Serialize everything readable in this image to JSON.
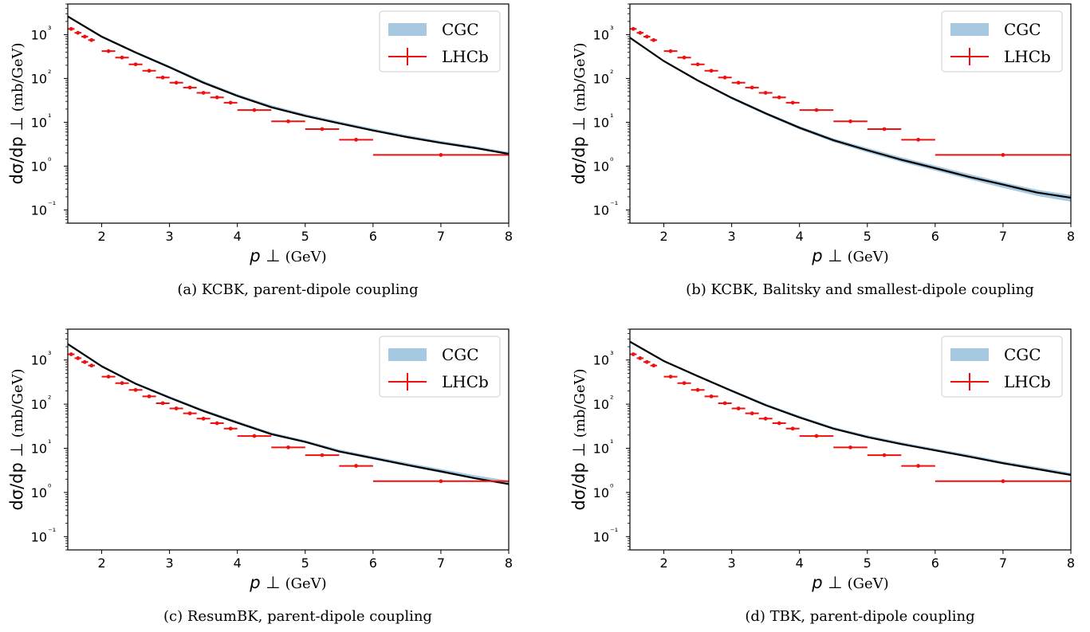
{
  "chart_data": [
    {
      "type": "line",
      "panel": "a",
      "caption": "(a) KCBK, parent-dipole coupling",
      "xlabel": "p_⊥ (GeV)",
      "ylabel": "dσ/dp_⊥ (mb/GeV)",
      "xlim": [
        1.5,
        8
      ],
      "ylim": [
        0.05,
        5000
      ],
      "yscale": "log",
      "x_ticks": [
        "2",
        "3",
        "4",
        "5",
        "6",
        "7",
        "8"
      ],
      "y_ticks": [
        "10⁻¹",
        "10⁰",
        "10¹",
        "10²",
        "10³"
      ],
      "legend": {
        "position": "top-right",
        "entries": [
          "CGC",
          "LHCb"
        ]
      },
      "series": [
        {
          "name": "CGC",
          "kind": "band+line",
          "x": [
            1.5,
            2.0,
            2.5,
            3.0,
            3.5,
            4.0,
            4.5,
            5.0,
            5.5,
            6.0,
            6.5,
            7.0,
            7.5,
            8.0
          ],
          "y": [
            2600,
            900,
            390,
            180,
            80,
            40,
            22,
            14,
            9.5,
            6.5,
            4.6,
            3.4,
            2.6,
            1.9
          ],
          "y_low": [
            2500,
            850,
            370,
            170,
            76,
            38,
            21,
            13.5,
            9.0,
            6.2,
            4.4,
            3.2,
            2.45,
            1.8
          ],
          "y_high": [
            2750,
            960,
            420,
            195,
            88,
            44,
            24.5,
            15.5,
            10.5,
            7.2,
            5.1,
            3.75,
            2.85,
            2.1
          ]
        },
        {
          "name": "LHCb",
          "kind": "errorbar",
          "x": [
            1.55,
            1.65,
            1.75,
            1.85,
            2.1,
            2.3,
            2.5,
            2.7,
            2.9,
            3.1,
            3.3,
            3.5,
            3.7,
            3.9,
            4.25,
            4.75,
            5.25,
            5.75,
            7.0
          ],
          "xerr": [
            0.05,
            0.05,
            0.05,
            0.05,
            0.1,
            0.1,
            0.1,
            0.1,
            0.1,
            0.1,
            0.1,
            0.1,
            0.1,
            0.1,
            0.25,
            0.25,
            0.25,
            0.25,
            1.0
          ],
          "y": [
            1350,
            1100,
            900,
            750,
            420,
            300,
            210,
            150,
            105,
            80,
            62,
            47,
            37,
            28,
            19,
            10.5,
            7,
            4,
            1.8
          ]
        }
      ]
    },
    {
      "type": "line",
      "panel": "b",
      "caption": "(b) KCBK, Balitsky and smallest-dipole coupling",
      "xlabel": "p_⊥ (GeV)",
      "ylabel": "dσ/dp_⊥ (mb/GeV)",
      "xlim": [
        1.5,
        8
      ],
      "ylim": [
        0.05,
        5000
      ],
      "yscale": "log",
      "x_ticks": [
        "2",
        "3",
        "4",
        "5",
        "6",
        "7",
        "8"
      ],
      "y_ticks": [
        "10⁻¹",
        "10⁰",
        "10¹",
        "10²",
        "10³"
      ],
      "legend": {
        "position": "top-right",
        "entries": [
          "CGC",
          "LHCb"
        ]
      },
      "series": [
        {
          "name": "CGC",
          "kind": "band+line",
          "x": [
            1.5,
            2.0,
            2.5,
            3.0,
            3.5,
            4.0,
            4.5,
            5.0,
            5.5,
            6.0,
            6.5,
            7.0,
            7.5,
            8.0
          ],
          "y": [
            850,
            250,
            90,
            36,
            16,
            7.5,
            3.9,
            2.3,
            1.4,
            0.9,
            0.57,
            0.38,
            0.25,
            0.19
          ],
          "y_low": [
            820,
            238,
            85,
            33.5,
            14.8,
            6.9,
            3.55,
            2.05,
            1.24,
            0.79,
            0.5,
            0.32,
            0.21,
            0.155
          ],
          "y_high": [
            880,
            262,
            95,
            38.5,
            17.2,
            8.2,
            4.3,
            2.6,
            1.6,
            1.03,
            0.66,
            0.43,
            0.29,
            0.22
          ]
        },
        {
          "name": "LHCb",
          "kind": "errorbar",
          "x": [
            1.55,
            1.65,
            1.75,
            1.85,
            2.1,
            2.3,
            2.5,
            2.7,
            2.9,
            3.1,
            3.3,
            3.5,
            3.7,
            3.9,
            4.25,
            4.75,
            5.25,
            5.75,
            7.0
          ],
          "xerr": [
            0.05,
            0.05,
            0.05,
            0.05,
            0.1,
            0.1,
            0.1,
            0.1,
            0.1,
            0.1,
            0.1,
            0.1,
            0.1,
            0.1,
            0.25,
            0.25,
            0.25,
            0.25,
            1.0
          ],
          "y": [
            1350,
            1100,
            900,
            750,
            420,
            300,
            210,
            150,
            105,
            80,
            62,
            47,
            37,
            28,
            19,
            10.5,
            7,
            4,
            1.8
          ]
        }
      ]
    },
    {
      "type": "line",
      "panel": "c",
      "caption": "(c) ResumBK, parent-dipole coupling",
      "xlabel": "p_⊥ (GeV)",
      "ylabel": "dσ/dp_⊥ (mb/GeV)",
      "xlim": [
        1.5,
        8
      ],
      "ylim": [
        0.05,
        5000
      ],
      "yscale": "log",
      "x_ticks": [
        "2",
        "3",
        "4",
        "5",
        "6",
        "7",
        "8"
      ],
      "y_ticks": [
        "10⁻¹",
        "10⁰",
        "10¹",
        "10²",
        "10³"
      ],
      "legend": {
        "position": "top-right",
        "entries": [
          "CGC",
          "LHCb"
        ]
      },
      "series": [
        {
          "name": "CGC",
          "kind": "band+line",
          "x": [
            1.5,
            2.0,
            2.5,
            3.0,
            3.5,
            4.0,
            4.5,
            5.0,
            5.5,
            6.0,
            6.5,
            7.0,
            7.5,
            8.0
          ],
          "y": [
            2300,
            720,
            290,
            140,
            70,
            38,
            21,
            14,
            8.5,
            6.0,
            4.2,
            3.0,
            2.1,
            1.55
          ],
          "y_low": [
            2200,
            690,
            278,
            133,
            66,
            36,
            19.8,
            13.2,
            8.0,
            5.6,
            3.95,
            2.8,
            2.0,
            1.5
          ],
          "y_high": [
            2450,
            770,
            310,
            152,
            76,
            41.5,
            23,
            15.2,
            9.4,
            6.6,
            4.7,
            3.4,
            2.45,
            1.85
          ]
        },
        {
          "name": "LHCb",
          "kind": "errorbar",
          "x": [
            1.55,
            1.65,
            1.75,
            1.85,
            2.1,
            2.3,
            2.5,
            2.7,
            2.9,
            3.1,
            3.3,
            3.5,
            3.7,
            3.9,
            4.25,
            4.75,
            5.25,
            5.75,
            7.0
          ],
          "xerr": [
            0.05,
            0.05,
            0.05,
            0.05,
            0.1,
            0.1,
            0.1,
            0.1,
            0.1,
            0.1,
            0.1,
            0.1,
            0.1,
            0.1,
            0.25,
            0.25,
            0.25,
            0.25,
            1.0
          ],
          "y": [
            1350,
            1100,
            900,
            750,
            420,
            300,
            210,
            150,
            105,
            80,
            62,
            47,
            37,
            28,
            19,
            10.5,
            7,
            4,
            1.8
          ]
        }
      ]
    },
    {
      "type": "line",
      "panel": "d",
      "caption": "(d) TBK, parent-dipole coupling",
      "xlabel": "p_⊥ (GeV)",
      "ylabel": "dσ/dp_⊥ (mb/GeV)",
      "xlim": [
        1.5,
        8
      ],
      "ylim": [
        0.05,
        5000
      ],
      "yscale": "log",
      "x_ticks": [
        "2",
        "3",
        "4",
        "5",
        "6",
        "7",
        "8"
      ],
      "y_ticks": [
        "10⁻¹",
        "10⁰",
        "10¹",
        "10²",
        "10³"
      ],
      "legend": {
        "position": "top-right",
        "entries": [
          "CGC",
          "LHCb"
        ]
      },
      "series": [
        {
          "name": "CGC",
          "kind": "band+line",
          "x": [
            1.5,
            2.0,
            2.5,
            3.0,
            3.5,
            4.0,
            4.5,
            5.0,
            5.5,
            6.0,
            6.5,
            7.0,
            7.5,
            8.0
          ],
          "y": [
            2600,
            950,
            430,
            200,
            95,
            50,
            28,
            18,
            12.5,
            9,
            6.5,
            4.6,
            3.4,
            2.5
          ],
          "y_low": [
            2500,
            910,
            410,
            190,
            90,
            47.5,
            26.5,
            17,
            11.8,
            8.5,
            6.1,
            4.3,
            3.2,
            2.35
          ],
          "y_high": [
            2750,
            1000,
            460,
            215,
            103,
            54.5,
            30.5,
            19.8,
            13.8,
            9.9,
            7.2,
            5.1,
            3.8,
            2.8
          ]
        },
        {
          "name": "LHCb",
          "kind": "errorbar",
          "x": [
            1.55,
            1.65,
            1.75,
            1.85,
            2.1,
            2.3,
            2.5,
            2.7,
            2.9,
            3.1,
            3.3,
            3.5,
            3.7,
            3.9,
            4.25,
            4.75,
            5.25,
            5.75,
            7.0
          ],
          "xerr": [
            0.05,
            0.05,
            0.05,
            0.05,
            0.1,
            0.1,
            0.1,
            0.1,
            0.1,
            0.1,
            0.1,
            0.1,
            0.1,
            0.1,
            0.25,
            0.25,
            0.25,
            0.25,
            1.0
          ],
          "y": [
            1350,
            1100,
            900,
            750,
            420,
            300,
            210,
            150,
            105,
            80,
            62,
            47,
            37,
            28,
            19,
            10.5,
            7,
            4,
            1.8
          ]
        }
      ]
    }
  ],
  "colors": {
    "band": "#a6c8e0",
    "line": "#000000",
    "data": "#ee1111",
    "axis": "#000000"
  }
}
